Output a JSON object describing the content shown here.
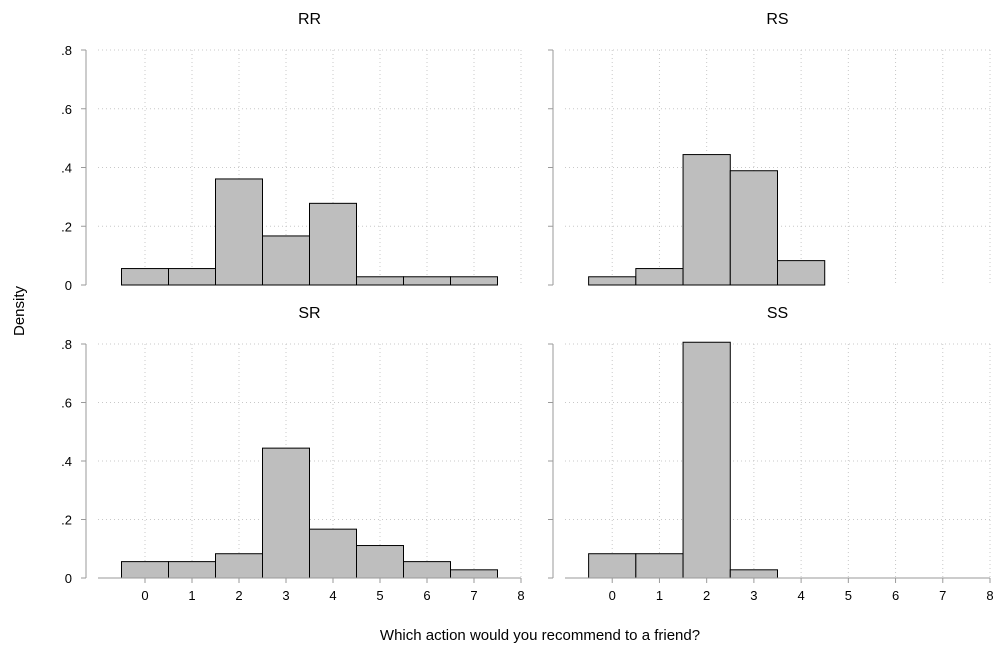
{
  "chart_data": {
    "type": "bar",
    "xlabel": "Which action would you recommend to a friend?",
    "ylabel": "Density",
    "xlim": [
      -1,
      8
    ],
    "ylim": [
      0,
      0.8
    ],
    "x_ticks": [
      0,
      1,
      2,
      3,
      4,
      5,
      6,
      7,
      8
    ],
    "y_ticks": [
      0,
      0.2,
      0.4,
      0.6,
      0.8
    ],
    "y_tick_labels": [
      "0",
      ".2",
      ".4",
      ".6",
      ".8"
    ],
    "grid": true,
    "panels": [
      {
        "title": "RR",
        "bins": [
          0,
          1,
          2,
          3,
          4,
          5,
          6,
          7
        ],
        "values": [
          0.056,
          0.056,
          0.361,
          0.167,
          0.278,
          0.028,
          0.028,
          0.028
        ]
      },
      {
        "title": "RS",
        "bins": [
          0,
          1,
          2,
          3,
          4
        ],
        "values": [
          0.028,
          0.056,
          0.444,
          0.389,
          0.083
        ]
      },
      {
        "title": "SR",
        "bins": [
          0,
          1,
          2,
          3,
          4,
          5,
          6,
          7
        ],
        "values": [
          0.056,
          0.056,
          0.083,
          0.444,
          0.167,
          0.111,
          0.056,
          0.028
        ]
      },
      {
        "title": "SS",
        "bins": [
          0,
          1,
          2,
          3
        ],
        "values": [
          0.083,
          0.083,
          0.806,
          0.028
        ]
      }
    ]
  }
}
